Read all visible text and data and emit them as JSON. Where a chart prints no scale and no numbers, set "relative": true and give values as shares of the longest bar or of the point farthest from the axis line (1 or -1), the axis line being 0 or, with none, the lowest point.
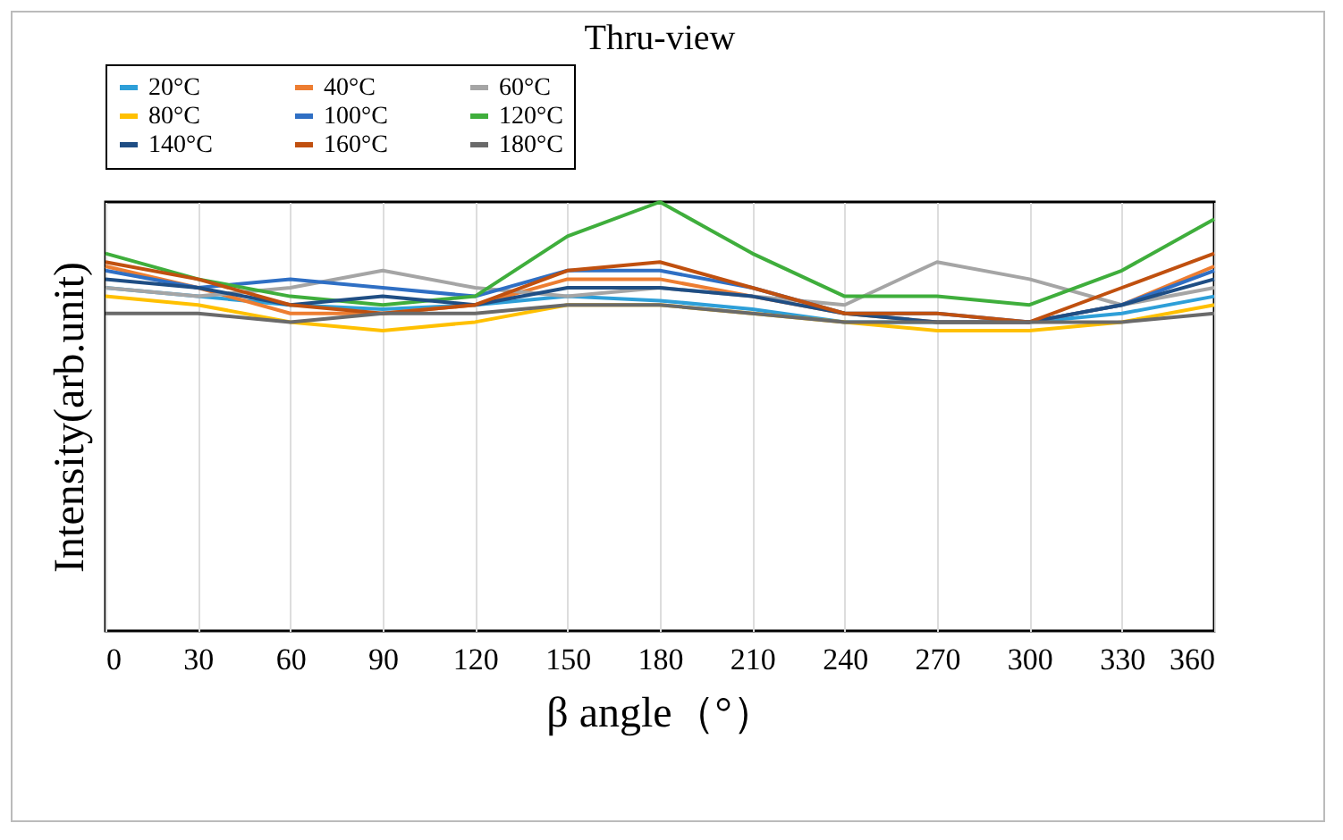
{
  "chart_data": {
    "type": "line",
    "title": "Thru-view",
    "xlabel": "β angle（°）",
    "ylabel": "Intensity(arb.unit)",
    "relative": true,
    "x": [
      0,
      30,
      60,
      90,
      120,
      150,
      180,
      210,
      240,
      270,
      300,
      330,
      360
    ],
    "xlim": [
      0,
      360
    ],
    "xticks": [
      0,
      30,
      60,
      90,
      120,
      150,
      180,
      210,
      240,
      270,
      300,
      330,
      360
    ],
    "grid": "x",
    "legend": "top left",
    "line_style": "solid",
    "marker": "none",
    "series": [
      {
        "name": "20°C",
        "color": "#2e9fd8",
        "values": [
          0.8,
          0.78,
          0.76,
          0.75,
          0.76,
          0.78,
          0.77,
          0.75,
          0.72,
          0.72,
          0.72,
          0.74,
          0.78
        ]
      },
      {
        "name": "40°C",
        "color": "#ed7d31",
        "values": [
          0.85,
          0.8,
          0.74,
          0.74,
          0.76,
          0.82,
          0.82,
          0.78,
          0.74,
          0.72,
          0.72,
          0.76,
          0.85
        ]
      },
      {
        "name": "60°C",
        "color": "#a5a5a5",
        "values": [
          0.8,
          0.78,
          0.8,
          0.84,
          0.8,
          0.78,
          0.8,
          0.78,
          0.76,
          0.86,
          0.82,
          0.76,
          0.8
        ]
      },
      {
        "name": "80°C",
        "color": "#ffc000",
        "values": [
          0.78,
          0.76,
          0.72,
          0.7,
          0.72,
          0.76,
          0.76,
          0.74,
          0.72,
          0.7,
          0.7,
          0.72,
          0.76
        ]
      },
      {
        "name": "100°C",
        "color": "#2f6fc4",
        "values": [
          0.84,
          0.8,
          0.82,
          0.8,
          0.78,
          0.84,
          0.84,
          0.8,
          0.74,
          0.74,
          0.72,
          0.76,
          0.84
        ]
      },
      {
        "name": "120°C",
        "color": "#3fae3c",
        "values": [
          0.88,
          0.82,
          0.78,
          0.76,
          0.78,
          0.92,
          1,
          0.88,
          0.78,
          0.78,
          0.76,
          0.84,
          0.96
        ]
      },
      {
        "name": "140°C",
        "color": "#1f4e84",
        "values": [
          0.82,
          0.8,
          0.76,
          0.78,
          0.76,
          0.8,
          0.8,
          0.78,
          0.74,
          0.72,
          0.72,
          0.76,
          0.82
        ]
      },
      {
        "name": "160°C",
        "color": "#c0500f",
        "values": [
          0.86,
          0.82,
          0.76,
          0.74,
          0.76,
          0.84,
          0.86,
          0.8,
          0.74,
          0.74,
          0.72,
          0.8,
          0.88
        ]
      },
      {
        "name": "180°C",
        "color": "#6a6a6a",
        "values": [
          0.74,
          0.74,
          0.72,
          0.74,
          0.74,
          0.76,
          0.76,
          0.74,
          0.72,
          0.72,
          0.72,
          0.72,
          0.74
        ]
      }
    ]
  }
}
